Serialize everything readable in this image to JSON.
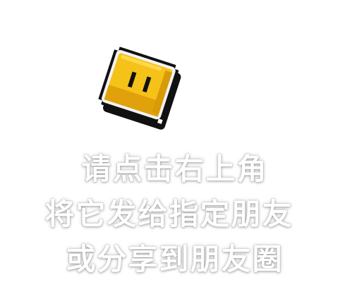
{
  "overlay": {
    "mascot_icon": "pixel-coin-face-icon",
    "colors": {
      "background": "#ffffff",
      "text": "#ffffff",
      "coin_fill": "#f5c21a",
      "coin_shade": "#e0a10a",
      "coin_outline": "#111111"
    },
    "instructions": [
      "请点击右上角",
      "将它发给指定朋友",
      "或分享到朋友圈"
    ]
  }
}
